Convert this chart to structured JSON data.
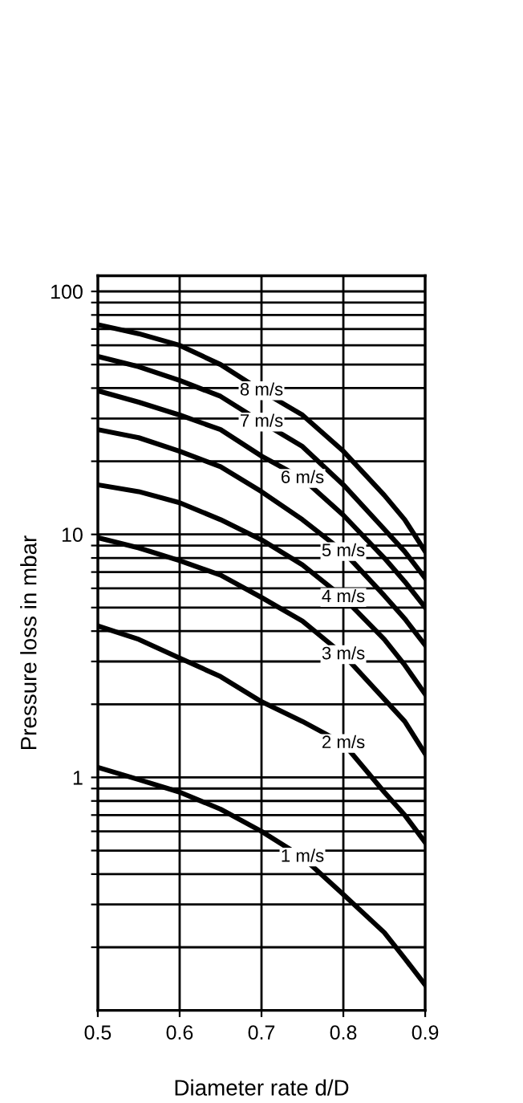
{
  "chart_data": {
    "type": "line",
    "xlabel": "Diameter rate d/D",
    "ylabel": "Pressure loss in mbar",
    "log": "y",
    "grid": true,
    "legend": false,
    "marker": "none",
    "line_style": "solid",
    "x": [
      0.5,
      0.55,
      0.6,
      0.65,
      0.7,
      0.75,
      0.8,
      0.85,
      0.875,
      0.9
    ],
    "xlim": [
      0.5,
      0.9
    ],
    "xticks": [
      0.5,
      0.6,
      0.7,
      0.8,
      0.9
    ],
    "ylim": [
      0.11,
      116
    ],
    "yticks": [
      {
        "value": 0.2,
        "label": null
      },
      {
        "value": 0.3,
        "label": null
      },
      {
        "value": 0.4,
        "label": null
      },
      {
        "value": 0.5,
        "label": null
      },
      {
        "value": 0.6,
        "label": null
      },
      {
        "value": 0.7,
        "label": null
      },
      {
        "value": 0.8,
        "label": null
      },
      {
        "value": 0.9,
        "label": null
      },
      1,
      {
        "value": 2,
        "label": null
      },
      {
        "value": 3,
        "label": null
      },
      {
        "value": 4,
        "label": null
      },
      {
        "value": 5,
        "label": null
      },
      {
        "value": 6,
        "label": null
      },
      {
        "value": 7,
        "label": null
      },
      {
        "value": 8,
        "label": null
      },
      {
        "value": 9,
        "label": null
      },
      10,
      {
        "value": 20,
        "label": null
      },
      {
        "value": 30,
        "label": null
      },
      {
        "value": 40,
        "label": null
      },
      {
        "value": 50,
        "label": null
      },
      {
        "value": 60,
        "label": null
      },
      {
        "value": 70,
        "label": null
      },
      {
        "value": 80,
        "label": null
      },
      {
        "value": 90,
        "label": null
      },
      100
    ],
    "series": [
      {
        "name": "8 m/s",
        "color": "#000000",
        "values": [
          73,
          67,
          60,
          50,
          39,
          31,
          22,
          14.5,
          11.5,
          8.5
        ]
      },
      {
        "name": "7 m/s",
        "color": "#000000",
        "values": [
          54,
          49,
          43,
          37,
          29,
          23,
          16,
          10.5,
          8.5,
          6.6
        ]
      },
      {
        "name": "6 m/s",
        "color": "#000000",
        "values": [
          39,
          35,
          31,
          27,
          21,
          17,
          12,
          8,
          6.4,
          5
        ]
      },
      {
        "name": "5 m/s",
        "color": "#000000",
        "values": [
          27,
          25,
          22,
          19,
          15,
          11.5,
          8.5,
          5.6,
          4.5,
          3.5
        ]
      },
      {
        "name": "4 m/s",
        "color": "#000000",
        "values": [
          16,
          15,
          13.5,
          11.5,
          9.5,
          7.5,
          5.5,
          3.7,
          2.9,
          2.2
        ]
      },
      {
        "name": "3 m/s",
        "color": "#000000",
        "values": [
          9.7,
          8.8,
          7.8,
          6.8,
          5.5,
          4.4,
          3.2,
          2.1,
          1.7,
          1.25
        ]
      },
      {
        "name": "2 m/s",
        "color": "#000000",
        "values": [
          4.2,
          3.7,
          3.1,
          2.6,
          2.05,
          1.7,
          1.38,
          0.87,
          0.7,
          0.54
        ]
      },
      {
        "name": "1 m/s",
        "color": "#000000",
        "values": [
          1.1,
          0.98,
          0.87,
          0.74,
          0.6,
          0.47,
          0.33,
          0.23,
          0.18,
          0.14
        ]
      }
    ]
  }
}
